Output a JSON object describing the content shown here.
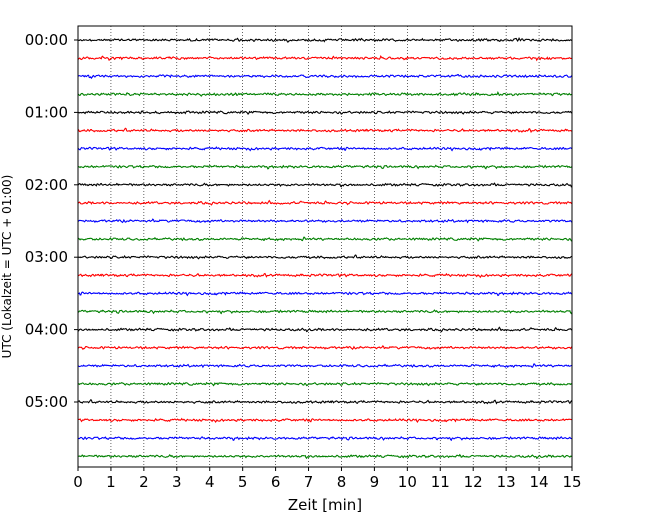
{
  "chart_data": {
    "type": "line",
    "xlabel": "Zeit  [min]",
    "ylabel": "UTC (Lokalzeit = UTC + 01:00)",
    "xlim": [
      0,
      15
    ],
    "xticks": [
      "0",
      "1",
      "2",
      "3",
      "4",
      "5",
      "6",
      "7",
      "8",
      "9",
      "10",
      "11",
      "12",
      "13",
      "14",
      "15"
    ],
    "row_labels": [
      "00:00",
      "01:00",
      "02:00",
      "03:00",
      "04:00",
      "05:00"
    ],
    "rows_per_hour": 4,
    "row_minutes": 15,
    "num_traces": 24,
    "trace_colors": [
      "#000000",
      "#ff0000",
      "#0000ff",
      "#008000"
    ],
    "vertical_grid": true,
    "grid_style": "dotted"
  }
}
